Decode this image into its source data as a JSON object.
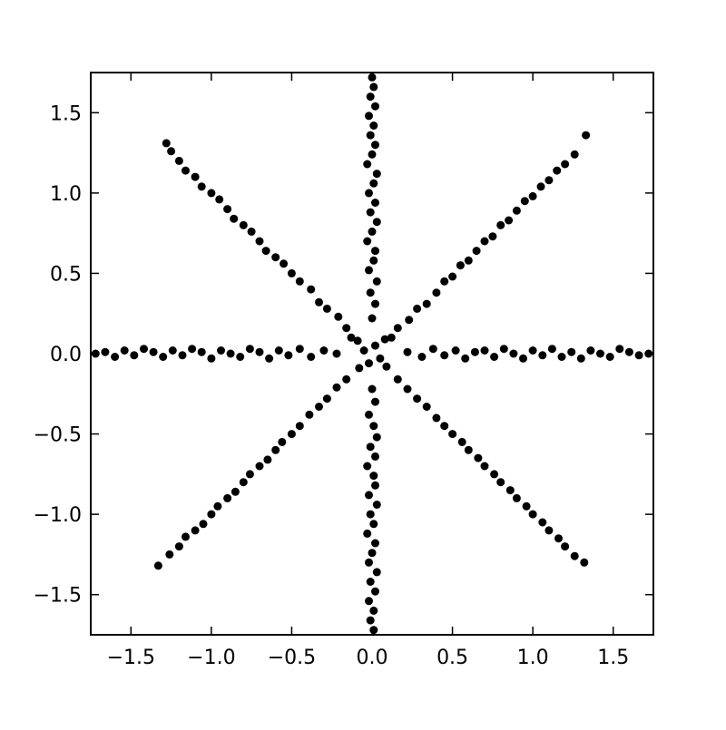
{
  "chart_data": {
    "type": "scatter",
    "title": "",
    "xlabel": "",
    "ylabel": "",
    "xlim": [
      -1.75,
      1.75
    ],
    "ylim": [
      -1.75,
      1.75
    ],
    "grid": false,
    "marker_color": "#000000",
    "background_color": "#ffffff",
    "xticks": [
      {
        "value": -1.5,
        "label": "−1.5"
      },
      {
        "value": -1.0,
        "label": "−1.0"
      },
      {
        "value": -0.5,
        "label": "−0.5"
      },
      {
        "value": 0.0,
        "label": "0.0"
      },
      {
        "value": 0.5,
        "label": "0.5"
      },
      {
        "value": 1.0,
        "label": "1.0"
      },
      {
        "value": 1.5,
        "label": "1.5"
      }
    ],
    "yticks": [
      {
        "value": 1.5,
        "label": "1.5"
      },
      {
        "value": 1.0,
        "label": "1.0"
      },
      {
        "value": 0.5,
        "label": "0.5"
      },
      {
        "value": 0.0,
        "label": "0.0"
      },
      {
        "value": -0.5,
        "label": "−0.5"
      },
      {
        "value": -1.0,
        "label": "−1.0"
      },
      {
        "value": -1.5,
        "label": "−1.5"
      }
    ],
    "series": [
      {
        "color": "#000000",
        "points": [
          [
            0.22,
            0.01
          ],
          [
            0.31,
            -0.02
          ],
          [
            0.38,
            0.03
          ],
          [
            0.45,
            -0.01
          ],
          [
            0.52,
            0.02
          ],
          [
            0.58,
            -0.03
          ],
          [
            0.64,
            0.01
          ],
          [
            0.7,
            0.02
          ],
          [
            0.76,
            -0.02
          ],
          [
            0.82,
            0.03
          ],
          [
            0.88,
            0.0
          ],
          [
            0.94,
            -0.03
          ],
          [
            1.0,
            0.02
          ],
          [
            1.06,
            -0.01
          ],
          [
            1.12,
            0.03
          ],
          [
            1.18,
            -0.02
          ],
          [
            1.24,
            0.01
          ],
          [
            1.3,
            -0.03
          ],
          [
            1.36,
            0.02
          ],
          [
            1.42,
            0.0
          ],
          [
            1.48,
            -0.02
          ],
          [
            1.54,
            0.03
          ],
          [
            1.6,
            0.01
          ],
          [
            1.66,
            -0.01
          ],
          [
            1.72,
            0.0
          ],
          [
            0.16,
            0.16
          ],
          [
            0.23,
            0.21
          ],
          [
            0.28,
            0.28
          ],
          [
            0.34,
            0.31
          ],
          [
            0.4,
            0.38
          ],
          [
            0.45,
            0.45
          ],
          [
            0.5,
            0.48
          ],
          [
            0.55,
            0.55
          ],
          [
            0.6,
            0.58
          ],
          [
            0.65,
            0.64
          ],
          [
            0.7,
            0.7
          ],
          [
            0.75,
            0.73
          ],
          [
            0.8,
            0.8
          ],
          [
            0.85,
            0.83
          ],
          [
            0.9,
            0.89
          ],
          [
            0.95,
            0.95
          ],
          [
            1.0,
            0.98
          ],
          [
            1.05,
            1.04
          ],
          [
            1.1,
            1.08
          ],
          [
            1.15,
            1.14
          ],
          [
            1.2,
            1.18
          ],
          [
            1.26,
            1.24
          ],
          [
            1.33,
            1.36
          ],
          [
            0.0,
            0.22
          ],
          [
            0.02,
            0.31
          ],
          [
            -0.01,
            0.38
          ],
          [
            0.03,
            0.45
          ],
          [
            -0.02,
            0.52
          ],
          [
            0.01,
            0.58
          ],
          [
            0.02,
            0.64
          ],
          [
            -0.03,
            0.7
          ],
          [
            0.0,
            0.76
          ],
          [
            0.03,
            0.82
          ],
          [
            -0.01,
            0.88
          ],
          [
            0.02,
            0.94
          ],
          [
            -0.02,
            1.0
          ],
          [
            0.01,
            1.06
          ],
          [
            0.03,
            1.12
          ],
          [
            -0.03,
            1.18
          ],
          [
            0.0,
            1.24
          ],
          [
            0.02,
            1.3
          ],
          [
            -0.01,
            1.36
          ],
          [
            0.01,
            1.42
          ],
          [
            -0.02,
            1.48
          ],
          [
            0.02,
            1.54
          ],
          [
            -0.01,
            1.6
          ],
          [
            0.01,
            1.66
          ],
          [
            0.0,
            1.72
          ],
          [
            -0.16,
            0.16
          ],
          [
            -0.21,
            0.23
          ],
          [
            -0.28,
            0.28
          ],
          [
            -0.33,
            0.32
          ],
          [
            -0.38,
            0.4
          ],
          [
            -0.45,
            0.45
          ],
          [
            -0.5,
            0.5
          ],
          [
            -0.55,
            0.56
          ],
          [
            -0.6,
            0.6
          ],
          [
            -0.66,
            0.64
          ],
          [
            -0.7,
            0.7
          ],
          [
            -0.75,
            0.76
          ],
          [
            -0.8,
            0.8
          ],
          [
            -0.86,
            0.84
          ],
          [
            -0.9,
            0.9
          ],
          [
            -0.95,
            0.96
          ],
          [
            -1.0,
            1.0
          ],
          [
            -1.06,
            1.04
          ],
          [
            -1.1,
            1.1
          ],
          [
            -1.16,
            1.14
          ],
          [
            -1.2,
            1.2
          ],
          [
            -1.25,
            1.26
          ],
          [
            -1.28,
            1.31
          ],
          [
            -0.22,
            0.0
          ],
          [
            -0.3,
            0.02
          ],
          [
            -0.38,
            -0.02
          ],
          [
            -0.45,
            0.03
          ],
          [
            -0.52,
            -0.01
          ],
          [
            -0.58,
            0.02
          ],
          [
            -0.64,
            -0.03
          ],
          [
            -0.7,
            0.01
          ],
          [
            -0.76,
            0.03
          ],
          [
            -0.82,
            -0.02
          ],
          [
            -0.88,
            0.0
          ],
          [
            -0.94,
            0.02
          ],
          [
            -1.0,
            -0.03
          ],
          [
            -1.06,
            0.01
          ],
          [
            -1.12,
            0.03
          ],
          [
            -1.18,
            -0.01
          ],
          [
            -1.24,
            0.02
          ],
          [
            -1.3,
            -0.02
          ],
          [
            -1.36,
            0.01
          ],
          [
            -1.42,
            0.03
          ],
          [
            -1.48,
            -0.01
          ],
          [
            -1.54,
            0.02
          ],
          [
            -1.6,
            -0.02
          ],
          [
            -1.66,
            0.01
          ],
          [
            -1.72,
            0.0
          ],
          [
            -0.16,
            -0.16
          ],
          [
            -0.22,
            -0.21
          ],
          [
            -0.28,
            -0.28
          ],
          [
            -0.33,
            -0.33
          ],
          [
            -0.39,
            -0.38
          ],
          [
            -0.45,
            -0.45
          ],
          [
            -0.5,
            -0.5
          ],
          [
            -0.56,
            -0.55
          ],
          [
            -0.6,
            -0.6
          ],
          [
            -0.65,
            -0.66
          ],
          [
            -0.7,
            -0.7
          ],
          [
            -0.76,
            -0.75
          ],
          [
            -0.8,
            -0.8
          ],
          [
            -0.85,
            -0.86
          ],
          [
            -0.9,
            -0.9
          ],
          [
            -0.96,
            -0.95
          ],
          [
            -1.0,
            -1.0
          ],
          [
            -1.05,
            -1.06
          ],
          [
            -1.1,
            -1.1
          ],
          [
            -1.16,
            -1.14
          ],
          [
            -1.2,
            -1.2
          ],
          [
            -1.26,
            -1.25
          ],
          [
            -1.33,
            -1.32
          ],
          [
            0.0,
            -0.22
          ],
          [
            0.02,
            -0.3
          ],
          [
            -0.02,
            -0.38
          ],
          [
            0.01,
            -0.45
          ],
          [
            0.03,
            -0.52
          ],
          [
            -0.01,
            -0.58
          ],
          [
            0.02,
            -0.64
          ],
          [
            -0.03,
            -0.7
          ],
          [
            0.01,
            -0.76
          ],
          [
            0.02,
            -0.82
          ],
          [
            -0.02,
            -0.88
          ],
          [
            0.03,
            -0.94
          ],
          [
            -0.01,
            -1.0
          ],
          [
            0.01,
            -1.06
          ],
          [
            -0.03,
            -1.12
          ],
          [
            0.02,
            -1.18
          ],
          [
            0.0,
            -1.24
          ],
          [
            -0.02,
            -1.3
          ],
          [
            0.03,
            -1.36
          ],
          [
            -0.01,
            -1.42
          ],
          [
            0.02,
            -1.48
          ],
          [
            -0.02,
            -1.54
          ],
          [
            0.01,
            -1.6
          ],
          [
            -0.01,
            -1.66
          ],
          [
            0.01,
            -1.72
          ],
          [
            0.16,
            -0.16
          ],
          [
            0.22,
            -0.22
          ],
          [
            0.28,
            -0.28
          ],
          [
            0.34,
            -0.33
          ],
          [
            0.4,
            -0.4
          ],
          [
            0.45,
            -0.45
          ],
          [
            0.5,
            -0.5
          ],
          [
            0.56,
            -0.55
          ],
          [
            0.6,
            -0.6
          ],
          [
            0.66,
            -0.65
          ],
          [
            0.7,
            -0.7
          ],
          [
            0.76,
            -0.75
          ],
          [
            0.8,
            -0.8
          ],
          [
            0.86,
            -0.85
          ],
          [
            0.9,
            -0.9
          ],
          [
            0.96,
            -0.95
          ],
          [
            1.0,
            -1.0
          ],
          [
            1.06,
            -1.05
          ],
          [
            1.1,
            -1.1
          ],
          [
            1.16,
            -1.15
          ],
          [
            1.2,
            -1.2
          ],
          [
            1.26,
            -1.26
          ],
          [
            1.32,
            -1.3
          ],
          [
            0.02,
            0.05
          ],
          [
            -0.05,
            0.02
          ],
          [
            0.05,
            -0.03
          ],
          [
            -0.02,
            -0.06
          ],
          [
            0.08,
            0.09
          ],
          [
            -0.09,
            0.08
          ],
          [
            -0.08,
            -0.09
          ],
          [
            0.09,
            -0.08
          ],
          [
            0.12,
            0.1
          ],
          [
            -0.13,
            0.1
          ]
        ]
      }
    ]
  }
}
